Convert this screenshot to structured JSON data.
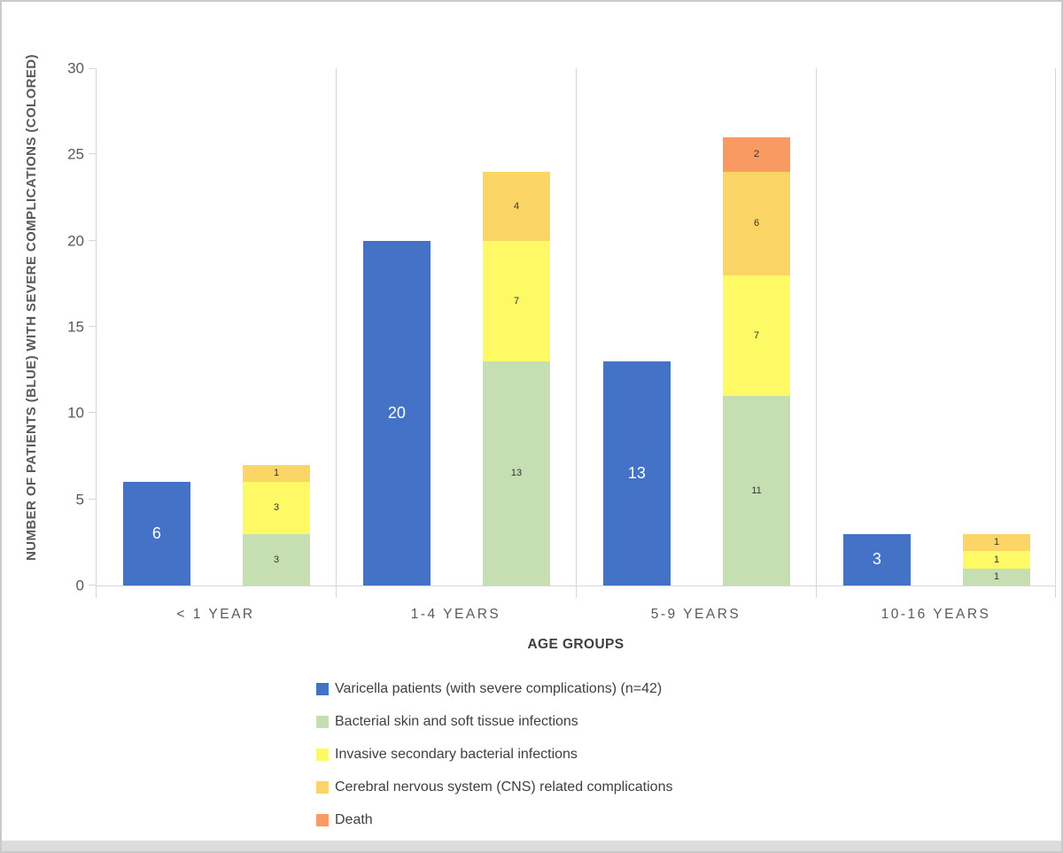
{
  "chart_data": {
    "type": "bar",
    "subtype": "per-category pair: one solo bar + one stacked bar",
    "title": "",
    "xlabel": "AGE GROUPS",
    "ylabel": "NUMBER OF PATIENTS (BLUE) WITH SEVERE COMPLICATIONS (COLORED)",
    "ylim": [
      0,
      30
    ],
    "yticks": [
      0,
      5,
      10,
      15,
      20,
      25,
      30
    ],
    "grid": "vertical category separators only, no horizontal gridlines",
    "legend_position": "bottom, left-indented, vertical list",
    "categories": [
      "< 1 YEAR",
      "1-4 YEARS",
      "5-9 YEARS",
      "10-16 YEARS"
    ],
    "series": [
      {
        "name": "Varicella patients (with severe complications) (n=42)",
        "role": "solo",
        "color": "#4472c6",
        "values": [
          6,
          20,
          13,
          3
        ]
      },
      {
        "name": "Bacterial skin and soft tissue infections",
        "role": "stacked",
        "color": "#c5dfb3",
        "values": [
          3,
          13,
          11,
          1
        ]
      },
      {
        "name": "Invasive secondary bacterial infections",
        "role": "stacked",
        "color": "#fdfa65",
        "values": [
          3,
          7,
          7,
          1
        ]
      },
      {
        "name": "Cerebral nervous system (CNS) related complications",
        "role": "stacked",
        "color": "#fbd566",
        "values": [
          1,
          4,
          6,
          1
        ]
      },
      {
        "name": "Death",
        "role": "stacked",
        "color": "#f99a63",
        "values": [
          0,
          0,
          2,
          0
        ]
      }
    ]
  },
  "colors": {
    "background": "#ffffff",
    "frame_border": "#c9c9c9",
    "axis_line": "#d6d6d6",
    "tick_text": "#595959",
    "x_label_text": "#595959",
    "axis_title_text": "#3f3f3f",
    "legend_text": "#404040",
    "solo_bar_label": "#ffffff",
    "segment_label": "#333333",
    "bottom_strip": "#dcdcdc"
  }
}
